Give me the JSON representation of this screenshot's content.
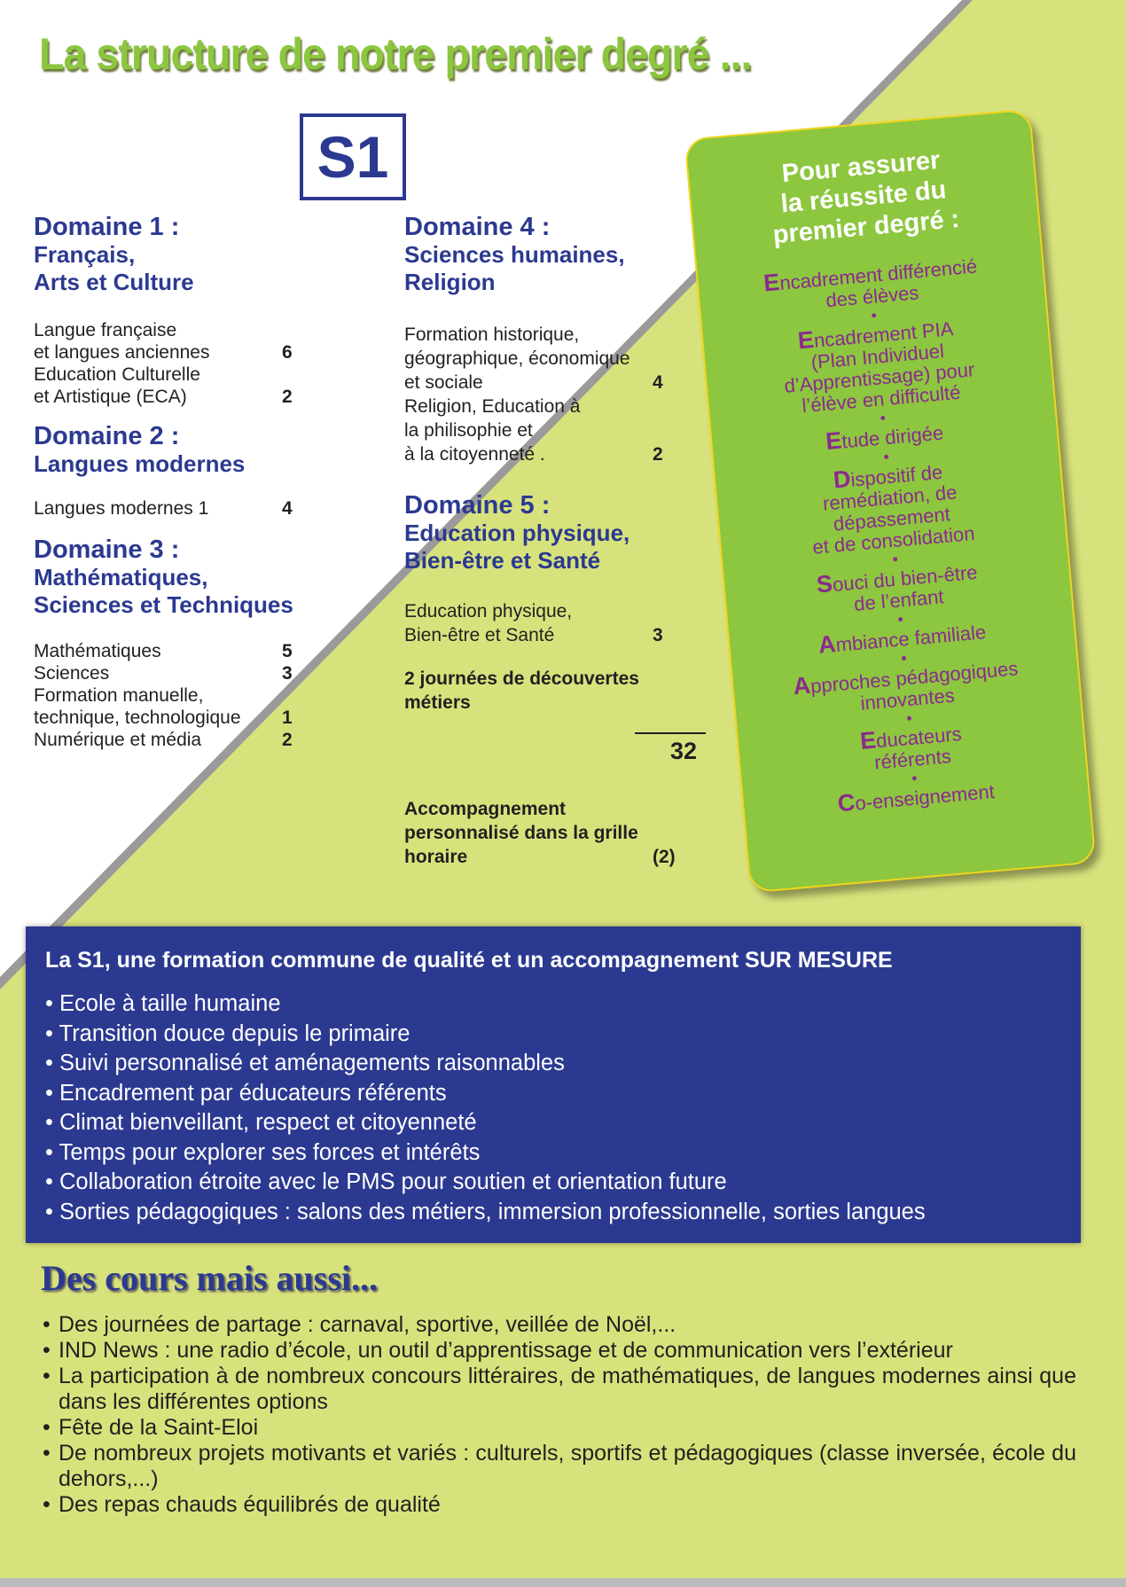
{
  "title": "La structure de notre premier degré ...",
  "badge": "S1",
  "domains": {
    "d1": {
      "title": "Domaine 1 :",
      "subtitle": "Français,",
      "subtitle2": "Arts et Culture",
      "rows": [
        {
          "label": "Langue française",
          "num": ""
        },
        {
          "label": "et langues anciennes",
          "num": "6"
        },
        {
          "label": "Education Culturelle",
          "num": ""
        },
        {
          "label": "et Artistique (ECA)",
          "num": "2"
        }
      ]
    },
    "d2": {
      "title": "Domaine 2 :",
      "subtitle": "Langues modernes",
      "rows": [
        {
          "label": "Langues modernes 1",
          "num": "4"
        }
      ]
    },
    "d3": {
      "title": "Domaine 3 :",
      "subtitle": "Mathématiques,",
      "subtitle2": "Sciences et Techniques",
      "rows": [
        {
          "label": "Mathématiques",
          "num": "5"
        },
        {
          "label": "Sciences",
          "num": "3"
        },
        {
          "label": "Formation manuelle,",
          "num": ""
        },
        {
          "label": "technique, technologique",
          "num": "1"
        },
        {
          "label": "Numérique et média",
          "num": "2"
        }
      ]
    },
    "d4": {
      "title": "Domaine 4 :",
      "subtitle": "Sciences humaines,",
      "subtitle2": "Religion",
      "rows": [
        {
          "label": "Formation historique,",
          "num": ""
        },
        {
          "label": "géographique, économique",
          "num": ""
        },
        {
          "label": "et sociale",
          "num": "4"
        },
        {
          "label": "Religion,  Education à",
          "num": ""
        },
        {
          "label": "la philisophie et",
          "num": ""
        },
        {
          "label": "à la citoyenneté            .",
          "num": "2"
        }
      ]
    },
    "d5": {
      "title": "Domaine 5 :",
      "subtitle": "Education physique,",
      "subtitle2": "Bien-être et Santé",
      "rows": [
        {
          "label": "Education physique,",
          "num": ""
        },
        {
          "label": "Bien-être et Santé",
          "num": "3"
        }
      ]
    }
  },
  "discovery": "2 journées de découvertes métiers",
  "total": "32",
  "accompaniment": {
    "label": "Accompagnement personnalisé dans la grille horaire",
    "num": "(2)"
  },
  "card": {
    "title": [
      "Pour assurer",
      "la réussite du",
      "premier degré :"
    ],
    "items": [
      {
        "initial": "E",
        "rest": "ncadrement différencié",
        "lines": [
          "des élèves"
        ]
      },
      {
        "initial": "E",
        "rest": "ncadrement PIA",
        "lines": [
          "(Plan Individuel",
          "d’Apprentissage) pour",
          "l’élève en difficulté"
        ]
      },
      {
        "initial": "E",
        "rest": "tude dirigée",
        "lines": []
      },
      {
        "initial": "D",
        "rest": "ispositif de",
        "lines": [
          "remédiation, de",
          "dépassement",
          "et de consolidation"
        ]
      },
      {
        "initial": "S",
        "rest": "ouci du bien-être",
        "lines": [
          "de l’enfant"
        ]
      },
      {
        "initial": "A",
        "rest": "mbiance familiale",
        "lines": []
      },
      {
        "initial": "A",
        "rest": "pproches pédagogiques",
        "lines": [
          "innovantes"
        ]
      },
      {
        "initial": "E",
        "rest": "ducateurs",
        "lines": [
          "référents"
        ]
      },
      {
        "initial": "C",
        "rest": "o-enseignement",
        "lines": []
      }
    ]
  },
  "blue_box": {
    "title": "La S1, une formation commune de qualité et un accompagnement SUR MESURE",
    "items": [
      "Ecole à taille humaine",
      "Transition douce depuis le primaire",
      "Suivi personnalisé et aménagements raisonnables",
      "Encadrement par éducateurs référents",
      "Climat bienveillant, respect et citoyenneté",
      "Temps pour explorer ses forces et intérêts",
      "Collaboration étroite avec le PMS pour soutien et orientation future",
      "Sorties pédagogiques : salons des métiers, immersion professionnelle, sorties langues"
    ]
  },
  "more": {
    "title": "Des cours mais aussi...",
    "items": [
      "Des journées de partage :  carnaval, sportive, veillée de Noël,...",
      "IND News : une radio d’école, un outil d’apprentissage et de communication vers l’extérieur",
      "La participation à de nombreux concours littéraires, de mathématiques, de langues modernes ainsi que dans les différentes options",
      "Fête de la Saint-Eloi",
      "De nombreux projets motivants et variés : culturels, sportifs et pédagogiques (classe inversée, école du dehors,...)",
      "Des repas chauds équilibrés de qualité"
    ]
  },
  "colors": {
    "background": "#d8e27c",
    "title_green": "#8cc63f",
    "blue": "#2b3990",
    "card_green": "#8dc63f",
    "purple": "#8b2a8f"
  }
}
